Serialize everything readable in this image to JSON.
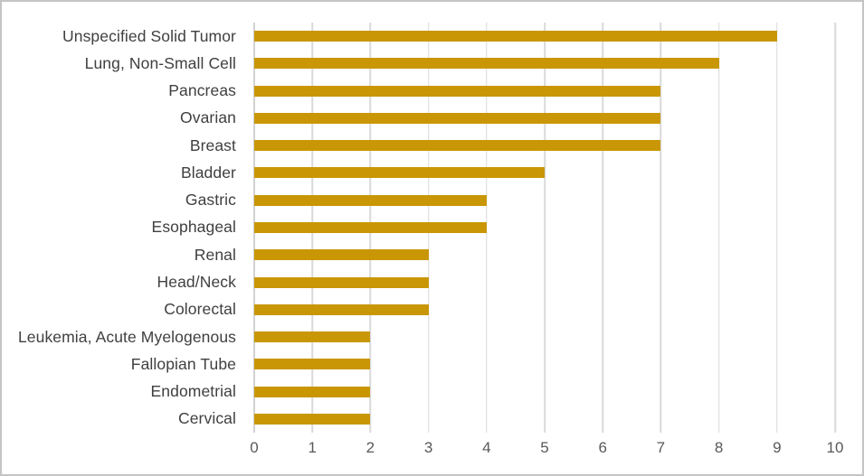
{
  "chart_data": {
    "type": "bar",
    "orientation": "horizontal",
    "title": "",
    "xlabel": "",
    "ylabel": "",
    "categories": [
      "Unspecified Solid Tumor",
      "Lung, Non-Small Cell",
      "Pancreas",
      "Ovarian",
      "Breast",
      "Bladder",
      "Gastric",
      "Esophageal",
      "Renal",
      "Head/Neck",
      "Colorectal",
      "Leukemia, Acute Myelogenous",
      "Fallopian Tube",
      "Endometrial",
      "Cervical"
    ],
    "values": [
      9,
      8,
      7,
      7,
      7,
      5,
      4,
      4,
      3,
      3,
      3,
      2,
      2,
      2,
      2
    ],
    "xlim": [
      0,
      10
    ],
    "x_ticks": [
      "0",
      "1",
      "2",
      "3",
      "4",
      "5",
      "6",
      "7",
      "8",
      "9",
      "10"
    ],
    "grid": "vertical-major",
    "legend": "none"
  },
  "colors": {
    "bar": "#c99705",
    "gridline": "#d9d9d9",
    "zero_line": "#d2d2d2",
    "category_label": "#404040",
    "tick_label": "#595959",
    "frame_border": "#c4c4c4",
    "background": "#ffffff"
  }
}
